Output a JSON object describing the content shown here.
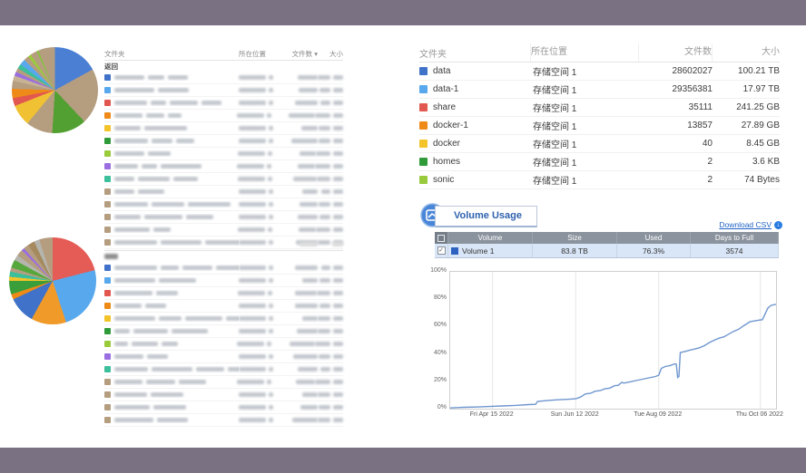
{
  "frame": {
    "color": "#7a7283"
  },
  "left": {
    "table1": {
      "headers": {
        "folder": "文件夹",
        "location": "所在位置",
        "count": "文件数",
        "size": "大小",
        "sort_icon": "▾"
      },
      "back_label": "返回",
      "row_colors": [
        "#3f72c8",
        "#57a8ec",
        "#e2574f",
        "#ee8b18",
        "#f3c32a",
        "#2f9b38",
        "#9acb3a",
        "#9a6ee0",
        "#3cbf9b",
        "#b59d80",
        "#b59d80",
        "#b59d80",
        "#b59d80",
        "#b59d80"
      ]
    },
    "table2": {
      "row_colors": [
        "#3f72c8",
        "#57a8ec",
        "#e2574f",
        "#ee8b18",
        "#f3c32a",
        "#2f9b38",
        "#9acb3a",
        "#9a6ee0",
        "#3cbf9b",
        "#b59d80",
        "#b59d80",
        "#b59d80",
        "#b59d80"
      ]
    }
  },
  "folders": {
    "headers": [
      "文件夹",
      "所在位置",
      "文件数",
      "大小"
    ],
    "rows": [
      {
        "name": "data",
        "color": "#3f72c8",
        "location": "存储空间 1",
        "count": "28602027",
        "size": "100.21 TB"
      },
      {
        "name": "data-1",
        "color": "#57a8ec",
        "location": "存储空间 1",
        "count": "29356381",
        "size": "17.97 TB"
      },
      {
        "name": "share",
        "color": "#e2574f",
        "location": "存储空间 1",
        "count": "35111",
        "size": "241.25 GB"
      },
      {
        "name": "docker-1",
        "color": "#ee8b18",
        "location": "存储空间 1",
        "count": "13857",
        "size": "27.89 GB"
      },
      {
        "name": "docker",
        "color": "#f3c32a",
        "location": "存储空间 1",
        "count": "40",
        "size": "8.45 GB"
      },
      {
        "name": "homes",
        "color": "#2f9b38",
        "location": "存储空间 1",
        "count": "2",
        "size": "3.6 KB"
      },
      {
        "name": "sonic",
        "color": "#98ca3c",
        "location": "存储空间 1",
        "count": "2",
        "size": "74 Bytes"
      }
    ]
  },
  "volume_usage": {
    "title": "Volume Usage",
    "download_csv": "Download CSV",
    "download_icon": "↓",
    "table": {
      "headers": [
        "Volume",
        "Size",
        "Used",
        "Days to Full"
      ],
      "rows": [
        {
          "name": "Volume 1",
          "legend_color": "#2d62c1",
          "size": "83.8 TB",
          "used": "76.3%",
          "days_to_full": "3574",
          "checked": "✓"
        }
      ]
    }
  },
  "chart_data": [
    {
      "type": "pie",
      "title": "folder-size-pie-top",
      "slices": [
        {
          "color": "#4a7fd4",
          "value": 17
        },
        {
          "color": "#b59d80",
          "value": 21
        },
        {
          "color": "#52a032",
          "value": 13
        },
        {
          "color": "#b59d80",
          "value": 10
        },
        {
          "color": "#f0c233",
          "value": 8
        },
        {
          "color": "#e2574f",
          "value": 3
        },
        {
          "color": "#ee8b18",
          "value": 3.5
        },
        {
          "color": "#b59d80",
          "value": 3
        },
        {
          "color": "#c8b295",
          "value": 2
        },
        {
          "color": "#9a6ee0",
          "value": 1.5
        },
        {
          "color": "#b59d80",
          "value": 1.5
        },
        {
          "color": "#3cbf9b",
          "value": 1.7
        },
        {
          "color": "#57a8ec",
          "value": 2.3
        },
        {
          "color": "#b59d80",
          "value": 1.8
        },
        {
          "color": "#9acb3a",
          "value": 1.2
        },
        {
          "color": "#b59d80",
          "value": 2.5
        },
        {
          "color": "#86c440",
          "value": 0.7
        },
        {
          "color": "#b59d80",
          "value": 6.3
        }
      ]
    },
    {
      "type": "pie",
      "title": "folder-size-pie-bottom",
      "slices": [
        {
          "color": "#e45c55",
          "value": 21
        },
        {
          "color": "#57a8ec",
          "value": 24
        },
        {
          "color": "#f09a2a",
          "value": 13
        },
        {
          "color": "#3f72c8",
          "value": 10
        },
        {
          "color": "#ee8b18",
          "value": 2
        },
        {
          "color": "#3a9e3a",
          "value": 5
        },
        {
          "color": "#f3c32a",
          "value": 1.5
        },
        {
          "color": "#3cbf9b",
          "value": 2
        },
        {
          "color": "#b59d80",
          "value": 1.5
        },
        {
          "color": "#57a83c",
          "value": 3
        },
        {
          "color": "#b5b5ad",
          "value": 2
        },
        {
          "color": "#b59d80",
          "value": 2.5
        },
        {
          "color": "#9a6ee0",
          "value": 1
        },
        {
          "color": "#b59d80",
          "value": 2
        },
        {
          "color": "#a58a60",
          "value": 2.5
        },
        {
          "color": "#b5b5ad",
          "value": 2
        },
        {
          "color": "#b59d80",
          "value": 4.5
        }
      ]
    },
    {
      "type": "line",
      "title": "Volume Usage over time",
      "ylim": [
        0,
        100
      ],
      "y_ticks": [
        0,
        20,
        40,
        60,
        80,
        100
      ],
      "y_tick_labels": [
        "0%",
        "20%",
        "40%",
        "60%",
        "80%",
        "100%"
      ],
      "x_tick_labels": [
        {
          "label": "Fri Apr 15 2022",
          "pos": 0.13
        },
        {
          "label": "Sun Jun 12 2022",
          "pos": 0.385
        },
        {
          "label": "Tue Aug 09 2022",
          "pos": 0.64
        },
        {
          "label": "Thu Oct 06 2022",
          "pos": 0.952
        }
      ],
      "grid": "vertical",
      "series": [
        {
          "name": "Volume 1",
          "color": "#6f96cf",
          "points": [
            [
              0,
              0.5
            ],
            [
              0.04,
              1
            ],
            [
              0.08,
              1.2
            ],
            [
              0.12,
              1.6
            ],
            [
              0.16,
              2
            ],
            [
              0.2,
              2.4
            ],
            [
              0.24,
              3
            ],
            [
              0.262,
              3.2
            ],
            [
              0.268,
              5.3
            ],
            [
              0.3,
              6
            ],
            [
              0.33,
              6.5
            ],
            [
              0.36,
              6.8
            ],
            [
              0.385,
              7.2
            ],
            [
              0.4,
              8.5
            ],
            [
              0.415,
              10.8
            ],
            [
              0.43,
              11.2
            ],
            [
              0.445,
              12.8
            ],
            [
              0.46,
              13.2
            ],
            [
              0.475,
              14.5
            ],
            [
              0.49,
              15
            ],
            [
              0.505,
              16.8
            ],
            [
              0.515,
              17
            ],
            [
              0.527,
              19.3
            ],
            [
              0.533,
              18.7
            ],
            [
              0.55,
              19.5
            ],
            [
              0.57,
              20.5
            ],
            [
              0.59,
              21.5
            ],
            [
              0.61,
              22.5
            ],
            [
              0.63,
              23.5
            ],
            [
              0.64,
              24.5
            ],
            [
              0.648,
              29.5
            ],
            [
              0.66,
              30.8
            ],
            [
              0.675,
              31.5
            ],
            [
              0.69,
              32.8
            ],
            [
              0.694,
              32.5
            ],
            [
              0.698,
              22.8
            ],
            [
              0.702,
              23.5
            ],
            [
              0.706,
              41
            ],
            [
              0.72,
              41.8
            ],
            [
              0.735,
              42.8
            ],
            [
              0.75,
              43.6
            ],
            [
              0.765,
              44.5
            ],
            [
              0.78,
              46
            ],
            [
              0.795,
              48.3
            ],
            [
              0.81,
              50
            ],
            [
              0.825,
              51.5
            ],
            [
              0.84,
              52.5
            ],
            [
              0.855,
              54.5
            ],
            [
              0.87,
              56.5
            ],
            [
              0.885,
              58
            ],
            [
              0.9,
              60.5
            ],
            [
              0.91,
              62
            ],
            [
              0.92,
              63.5
            ],
            [
              0.935,
              64.2
            ],
            [
              0.95,
              64.8
            ],
            [
              0.958,
              65
            ],
            [
              0.968,
              70
            ],
            [
              0.975,
              73.5
            ],
            [
              0.985,
              75.5
            ],
            [
              1,
              76.3
            ]
          ]
        }
      ]
    }
  ]
}
